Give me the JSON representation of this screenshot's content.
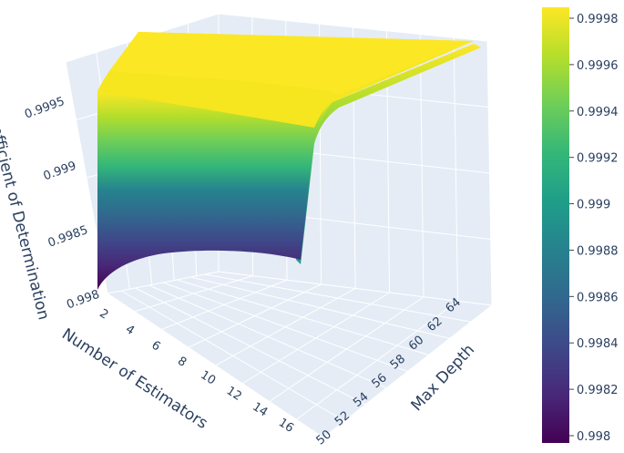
{
  "chart_data": {
    "type": "surface",
    "title": "",
    "colorscale": "viridis",
    "colorscale_stops": [
      "#440154",
      "#482878",
      "#3e4989",
      "#31688e",
      "#26828e",
      "#1f9e89",
      "#35b779",
      "#6ece58",
      "#b5de2b",
      "#fde725"
    ],
    "axes": {
      "x": {
        "label": "Number of Estimators",
        "range": [
          2,
          16
        ],
        "ticks": [
          "2",
          "4",
          "6",
          "8",
          "10",
          "12",
          "14",
          "16"
        ]
      },
      "y": {
        "label": "Max Depth",
        "range": [
          50,
          64
        ],
        "ticks": [
          "50",
          "52",
          "54",
          "56",
          "58",
          "60",
          "62",
          "64"
        ]
      },
      "z": {
        "label": "Coefficient of Determination",
        "range": [
          0.998,
          0.9998
        ],
        "ticks": [
          "0.998",
          "0.9985",
          "0.999",
          "0.9995"
        ]
      }
    },
    "colorbar": {
      "range": [
        0.998,
        0.9998
      ],
      "ticks": [
        "0.9998",
        "0.9996",
        "0.9994",
        "0.9992",
        "0.999",
        "0.9988",
        "0.9986",
        "0.9984",
        "0.9982",
        "0.998"
      ]
    },
    "surface_profile": {
      "n_estimators": [
        2,
        3,
        4,
        5,
        6,
        8,
        10,
        12,
        14,
        16
      ],
      "r2_at_max_depth_50": [
        0.998,
        0.9992,
        0.99963,
        0.99975,
        0.99979,
        0.99981,
        0.99982,
        0.99982,
        0.99982,
        0.99982
      ],
      "note_depth_dependence": "near-flat across Max Depth"
    }
  }
}
